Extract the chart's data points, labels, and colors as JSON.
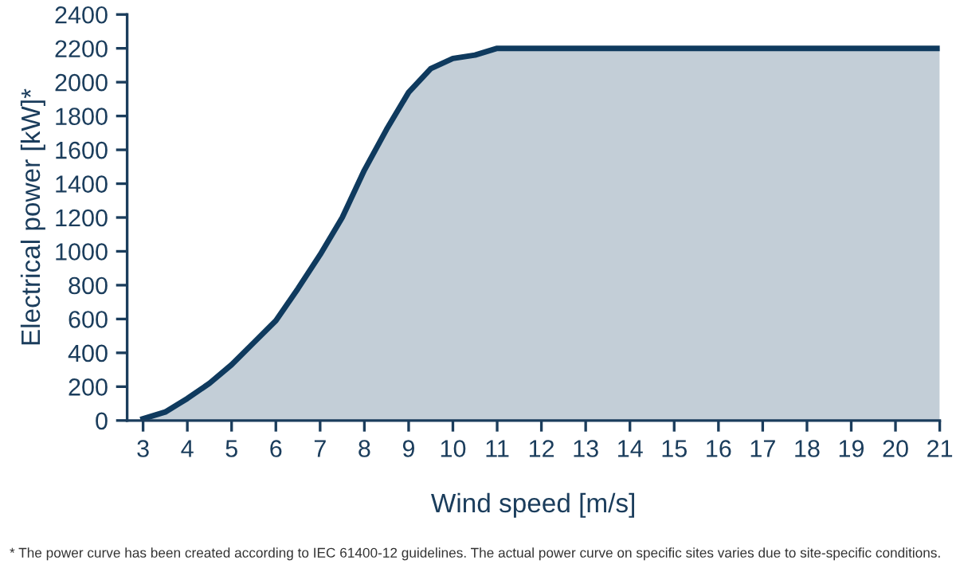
{
  "chart_data": {
    "type": "area",
    "xlabel": "Wind speed [m/s]",
    "ylabel": "Electrical power [kW]*",
    "annotations": [
      "* The power curve has been created according to IEC 61400-12 guidelines. The actual power curve on specific sites varies due to site-specific conditions."
    ],
    "series": [
      {
        "color": "#0f3a5e",
        "x": [
          3,
          3.5,
          4,
          4.5,
          5,
          5.5,
          6,
          6.5,
          7,
          7.5,
          8,
          8.5,
          9,
          9.5,
          10,
          10.5,
          11,
          21
        ],
        "values": [
          10,
          50,
          130,
          220,
          330,
          460,
          590,
          780,
          980,
          1200,
          1480,
          1720,
          1940,
          2080,
          2140,
          2160,
          2200,
          2200
        ]
      }
    ],
    "xlim": [
      2.64,
      21
    ],
    "xticks": [
      3,
      4,
      5,
      6,
      7,
      8,
      9,
      10,
      11,
      12,
      13,
      14,
      15,
      16,
      17,
      18,
      19,
      20,
      21
    ],
    "ylim": [
      0,
      2400
    ],
    "yticks": [
      0,
      200,
      400,
      600,
      800,
      1000,
      1200,
      1400,
      1600,
      1800,
      2000,
      2200,
      2400
    ],
    "grid": false,
    "legend": false
  }
}
